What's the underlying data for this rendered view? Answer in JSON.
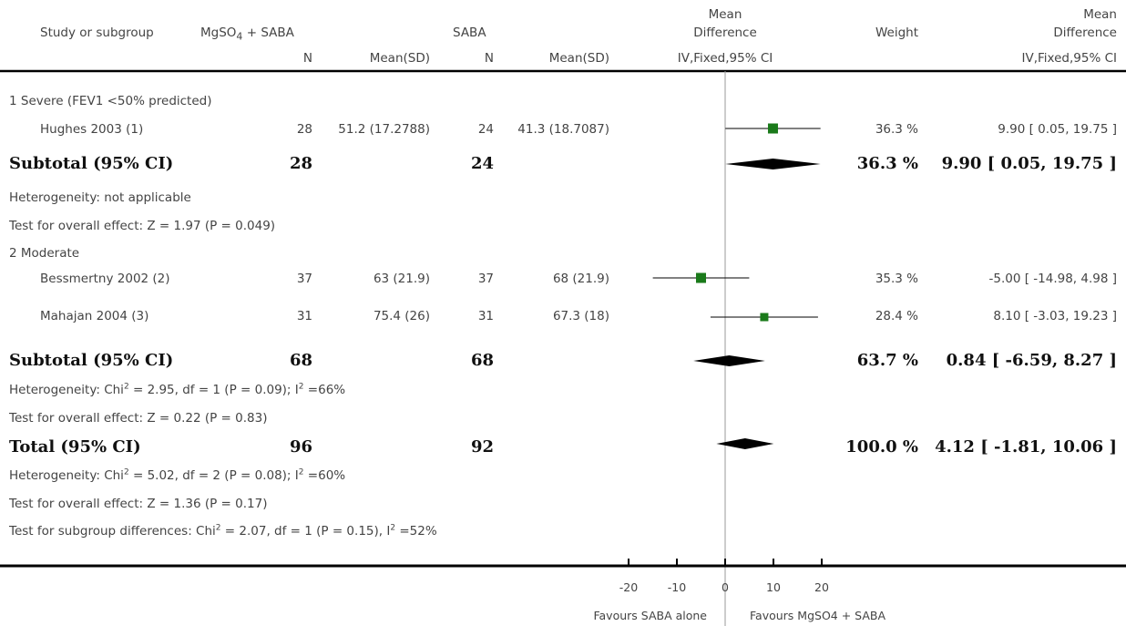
{
  "header": {
    "study_col": "Study or subgroup",
    "group1_label": "MgSO",
    "group1_sub": "4",
    "group1_suffix": " + SABA",
    "group2_label": "SABA",
    "n1": "N",
    "mean1": "Mean(SD)",
    "n2": "N",
    "mean2": "Mean(SD)",
    "md_top": "Mean",
    "md_mid": "Difference",
    "md_method": "IV,Fixed,95% CI",
    "weight": "Weight",
    "md2_top": "Mean",
    "md2_mid": "Difference",
    "md2_method": "IV,Fixed,95% CI"
  },
  "subgroups": [
    {
      "title": "1 Severe (FEV1 <50% predicted)",
      "studies": [
        {
          "name": "Hughes 2003 (1)",
          "n1": "28",
          "mean1": "51.2 (17.2788)",
          "n2": "24",
          "mean2": "41.3 (18.7087)",
          "weight": "36.3 %",
          "ci": "9.90 [ 0.05, 19.75 ]"
        }
      ],
      "subtotal": {
        "label": "Subtotal (95% CI)",
        "n1": "28",
        "n2": "24",
        "weight": "36.3 %",
        "ci": "9.90 [ 0.05, 19.75 ]"
      },
      "heterogeneity": "Heterogeneity: not applicable",
      "overall": "Test for overall effect: Z = 1.97 (P = 0.049)"
    },
    {
      "title": "2 Moderate",
      "studies": [
        {
          "name": "Bessmertny 2002 (2)",
          "n1": "37",
          "mean1": "63 (21.9)",
          "n2": "37",
          "mean2": "68 (21.9)",
          "weight": "35.3 %",
          "ci": "-5.00 [ -14.98, 4.98 ]"
        },
        {
          "name": "Mahajan 2004 (3)",
          "n1": "31",
          "mean1": "75.4 (26)",
          "n2": "31",
          "mean2": "67.3 (18)",
          "weight": "28.4 %",
          "ci": "8.10 [ -3.03, 19.23 ]"
        }
      ],
      "subtotal": {
        "label": "Subtotal (95% CI)",
        "n1": "68",
        "n2": "68",
        "weight": "63.7 %",
        "ci": "0.84 [ -6.59, 8.27 ]"
      },
      "heterogeneity_pre": "Heterogeneity: Chi",
      "heterogeneity_mid": " = 2.95, df = 1 (P = 0.09); I",
      "heterogeneity_post": " =66%",
      "overall": "Test for overall effect: Z = 0.22 (P = 0.83)"
    }
  ],
  "total": {
    "label": "Total (95% CI)",
    "n1": "96",
    "n2": "92",
    "weight": "100.0 %",
    "ci": "4.12 [ -1.81, 10.06 ]",
    "heterogeneity_pre": "Heterogeneity: Chi",
    "heterogeneity_mid": " = 5.02, df = 2 (P = 0.08); I",
    "heterogeneity_post": " =60%",
    "overall": "Test for overall effect: Z = 1.36 (P = 0.17)",
    "subgroup_pre": "Test for subgroup differences: Chi",
    "subgroup_mid": " = 2.07, df = 1 (P = 0.15), I",
    "subgroup_post": " =52%",
    "sup2": "2"
  },
  "axis": {
    "favours_left": "Favours SABA alone",
    "favours_right": "Favours MgSO4 + SABA"
  },
  "colors": {
    "study_marker": "#1a7a1a",
    "diamond": "#000000",
    "line": "#000000"
  },
  "chart_data": {
    "type": "forest",
    "xlim": [
      -20,
      20
    ],
    "ticks": [
      -20,
      -10,
      0,
      10,
      20
    ],
    "tick_labels": [
      "-20",
      "-10",
      "0",
      "10",
      "20"
    ],
    "studies": [
      {
        "name": "Hughes 2003 (1)",
        "md": 9.9,
        "lo": 0.05,
        "hi": 19.75,
        "weight": 36.3
      },
      {
        "name": "Bessmertny 2002 (2)",
        "md": -5.0,
        "lo": -14.98,
        "hi": 4.98,
        "weight": 35.3
      },
      {
        "name": "Mahajan 2004 (3)",
        "md": 8.1,
        "lo": -3.03,
        "hi": 19.23,
        "weight": 28.4
      }
    ],
    "summaries": [
      {
        "name": "Subtotal (95% CI)",
        "md": 9.9,
        "lo": 0.05,
        "hi": 19.75
      },
      {
        "name": "Subtotal (95% CI)",
        "md": 0.84,
        "lo": -6.59,
        "hi": 8.27
      },
      {
        "name": "Total (95% CI)",
        "md": 4.12,
        "lo": -1.81,
        "hi": 10.06
      }
    ]
  }
}
